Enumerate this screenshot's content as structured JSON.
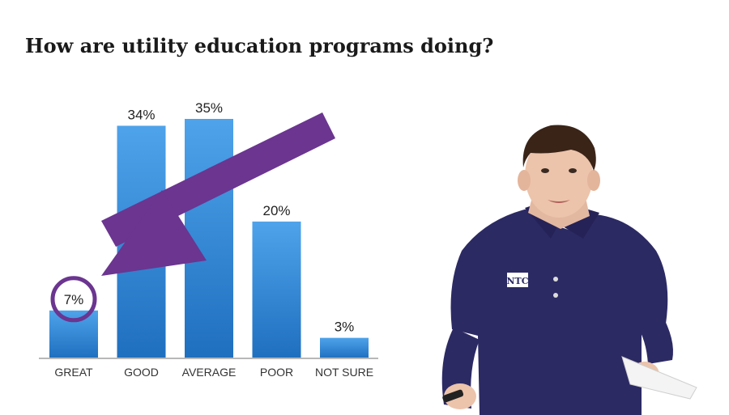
{
  "title": "How are utility education programs doing?",
  "chart_data": {
    "type": "bar",
    "categories": [
      "GREAT",
      "GOOD",
      "AVERAGE",
      "POOR",
      "NOT SURE"
    ],
    "values": [
      7,
      34,
      35,
      20,
      3
    ],
    "value_labels": [
      "7%",
      "34%",
      "35%",
      "20%",
      "3%"
    ],
    "ylim": [
      0,
      35
    ],
    "grid": false,
    "highlight_index": 0,
    "bar_color": "#2f80cf",
    "highlight_color": "#6b3590"
  },
  "presenter": {
    "shirt_logo": "NTC"
  },
  "colors": {
    "arrow": "#6b3590",
    "shirt": "#2c2a63"
  }
}
